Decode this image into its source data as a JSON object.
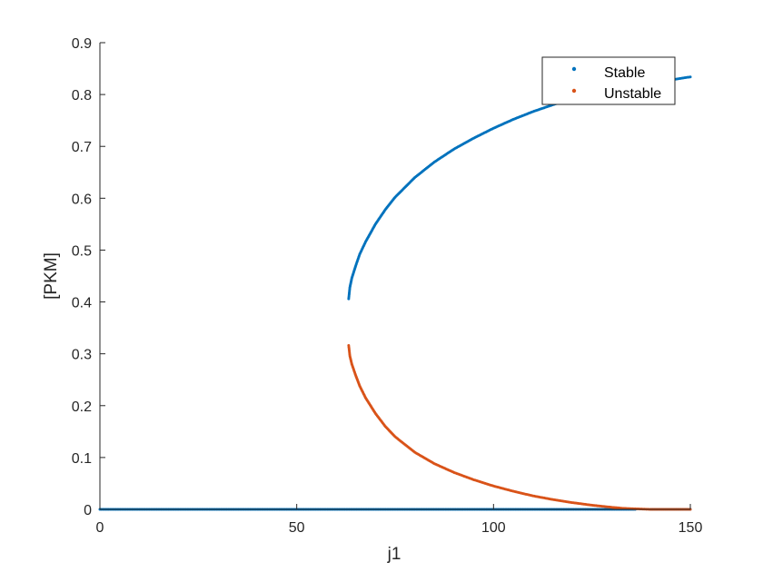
{
  "chart_data": {
    "type": "scatter",
    "title": "",
    "xlabel": "j1",
    "ylabel": "[PKM]",
    "xlim": [
      0,
      150
    ],
    "ylim": [
      0,
      0.9
    ],
    "xticks": [
      0,
      50,
      100,
      150
    ],
    "yticks": [
      0,
      0.1,
      0.2,
      0.3,
      0.4,
      0.5,
      0.6,
      0.7,
      0.8,
      0.9
    ],
    "xtick_labels": [
      "0",
      "50",
      "100",
      "150"
    ],
    "ytick_labels": [
      "0",
      "0.1",
      "0.2",
      "0.3",
      "0.4",
      "0.5",
      "0.6",
      "0.7",
      "0.8",
      "0.9"
    ],
    "grid": false,
    "legend_position": "top-right",
    "series": [
      {
        "name": "Stable",
        "color": "#0072BD",
        "segments": [
          {
            "x": [
              0,
              10,
              20,
              30,
              40,
              50,
              60,
              70,
              80,
              90,
              100,
              110,
              120,
              130,
              136
            ],
            "y": [
              0,
              0,
              0,
              0,
              0,
              0,
              0,
              0,
              0,
              0,
              0,
              0,
              0,
              0,
              0
            ]
          },
          {
            "x": [
              63.2,
              63.5,
              64,
              65,
              66,
              67.5,
              70,
              72.5,
              75,
              80,
              85,
              90,
              95,
              100,
              105,
              110,
              115,
              120,
              125,
              130,
              135,
              140,
              145,
              150
            ],
            "y": [
              0.406,
              0.428,
              0.446,
              0.47,
              0.492,
              0.516,
              0.55,
              0.578,
              0.602,
              0.64,
              0.67,
              0.695,
              0.716,
              0.735,
              0.752,
              0.767,
              0.78,
              0.792,
              0.802,
              0.811,
              0.818,
              0.823,
              0.828,
              0.834
            ]
          },
          {
            "x": [
              140,
              142,
              144,
              146,
              148,
              150
            ],
            "y": [
              0,
              0,
              0,
              0,
              0,
              0
            ]
          }
        ]
      },
      {
        "name": "Unstable",
        "color": "#D95319",
        "segments": [
          {
            "x": [
              63.2,
              63.5,
              64,
              65,
              66,
              67.5,
              70,
              72.5,
              75,
              80,
              85,
              90,
              95,
              100,
              105,
              110,
              115,
              120,
              125,
              130,
              133,
              136,
              138,
              140,
              142,
              144,
              146,
              148,
              150
            ],
            "y": [
              0.316,
              0.296,
              0.28,
              0.258,
              0.238,
              0.215,
              0.185,
              0.16,
              0.14,
              0.11,
              0.088,
              0.071,
              0.057,
              0.045,
              0.035,
              0.026,
              0.019,
              0.013,
              0.008,
              0.004,
              0.002,
              0.001,
              0.0005,
              0,
              0,
              0,
              0,
              0,
              0
            ]
          }
        ]
      }
    ]
  }
}
